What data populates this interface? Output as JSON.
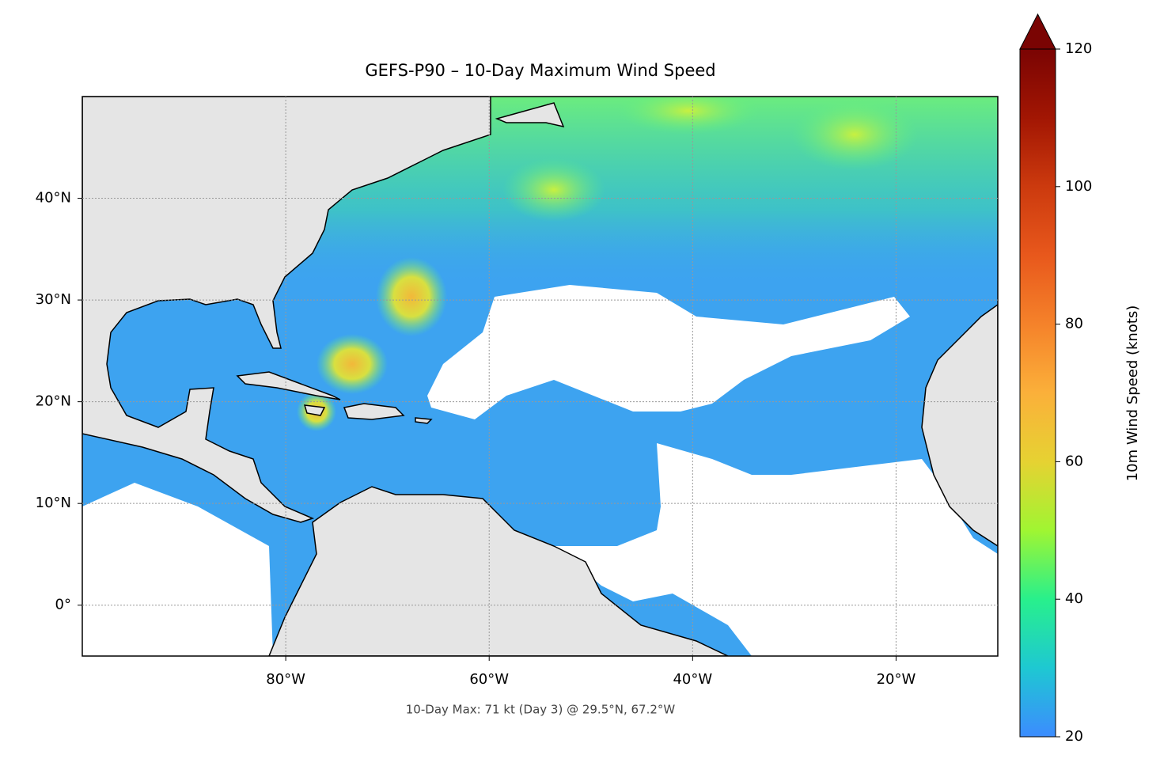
{
  "chart_data": {
    "type": "map",
    "title": "GEFS-P90 – 10-Day Maximum Wind Speed",
    "annotation": "10-Day Max: 71 kt (Day 3) @ 29.5°N, 67.2°W",
    "xlim": [
      -100,
      -10
    ],
    "ylim": [
      -5,
      50
    ],
    "xticks": [
      {
        "value": -80,
        "label": "80°W"
      },
      {
        "value": -60,
        "label": "60°W"
      },
      {
        "value": -40,
        "label": "40°W"
      },
      {
        "value": -20,
        "label": "20°W"
      }
    ],
    "yticks": [
      {
        "value": 0,
        "label": "0°"
      },
      {
        "value": 10,
        "label": "10°N"
      },
      {
        "value": 20,
        "label": "20°N"
      },
      {
        "value": 30,
        "label": "30°N"
      },
      {
        "value": 40,
        "label": "40°N"
      }
    ],
    "grid": true,
    "colorbar": {
      "label": "10m Wind Speed (knots)",
      "lim": [
        20,
        120
      ],
      "ticks": [
        20,
        40,
        60,
        80,
        100,
        120
      ],
      "extend": "max"
    }
  }
}
